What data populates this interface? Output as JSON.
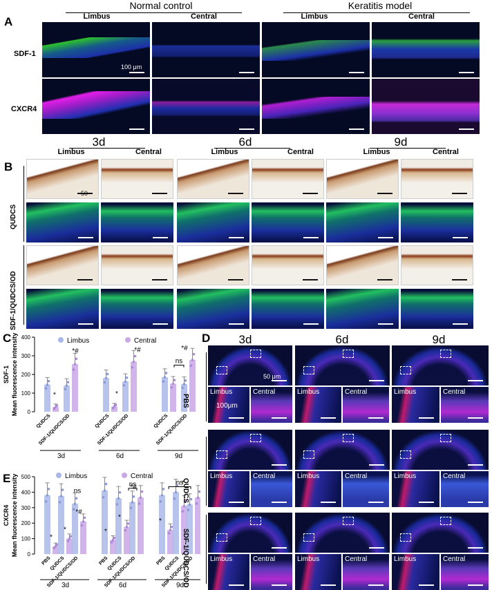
{
  "panelA": {
    "letter": "A",
    "groups": [
      "Normal control",
      "Keratitis model"
    ],
    "cols": [
      "Limbus",
      "Central",
      "Limbus",
      "Central"
    ],
    "rows": [
      "SDF-1",
      "CXCR4"
    ],
    "scale": "100 μm",
    "colors": {
      "sdf": "#32c832",
      "cxcr": "#d21edc",
      "dapi": "#1e32c8"
    }
  },
  "panelB": {
    "letter": "B",
    "days": [
      "3d",
      "6d",
      "9d"
    ],
    "cols": [
      "Limbus",
      "Central"
    ],
    "groups": [
      "QUDCS",
      "SDF-1/QUDCS/OD"
    ],
    "scale": "50 μm"
  },
  "panelC": {
    "letter": "C",
    "chart_data": {
      "type": "bar",
      "ylabel_line1": "SDF-1",
      "ylabel_line2": "Mean fluorescence intensity",
      "ylim": [
        0,
        400
      ],
      "yticks": [
        0,
        100,
        200,
        300,
        400
      ],
      "legend": [
        "Limbus",
        "Central"
      ],
      "colors": {
        "limbus": "#aab8e8",
        "central": "#c9a8e6"
      },
      "groups": [
        {
          "day": "3d",
          "categories": [
            "QUDCS",
            "SDF-1/QUDCS/OD"
          ],
          "limbus": [
            145,
            140
          ],
          "central": [
            25,
            255
          ]
        },
        {
          "day": "6d",
          "categories": [
            "QUDCS",
            "SDF-1/QUDCS/OD"
          ],
          "limbus": [
            180,
            162
          ],
          "central": [
            28,
            268
          ]
        },
        {
          "day": "9d",
          "categories": [
            "QUDCS",
            "SDF-1/QUDCS/OD"
          ],
          "limbus": [
            185,
            148
          ],
          "central": [
            150,
            278
          ]
        }
      ],
      "annotations": [
        "*",
        "*#",
        "ns"
      ]
    }
  },
  "panelD": {
    "letter": "D",
    "days": [
      "3d",
      "6d",
      "9d"
    ],
    "groups": [
      "PBS",
      "QUDCS",
      "SDF-1/QUDCS/OD"
    ],
    "inset_labels": [
      "Limbus",
      "Central"
    ],
    "scale1": "50 μm",
    "scale2": "100μm"
  },
  "panelE": {
    "letter": "E",
    "chart_data": {
      "type": "bar",
      "ylabel_line1": "CXCR4",
      "ylabel_line2": "Mean fluorescence intensity",
      "ylim": [
        0,
        500
      ],
      "yticks": [
        0,
        100,
        200,
        300,
        400,
        500
      ],
      "legend": [
        "Limbus",
        "Central"
      ],
      "colors": {
        "limbus": "#aab8e8",
        "central": "#c9a8e6"
      },
      "groups": [
        {
          "day": "3d",
          "categories": [
            "PBS",
            "QUDCS",
            "SDF-1/QUDCS/OD"
          ],
          "limbus": [
            380,
            375,
            325
          ],
          "central": [
            50,
            100,
            210
          ]
        },
        {
          "day": "6d",
          "categories": [
            "PBS",
            "QUDCS",
            "SDF-1/QUDCS/OD"
          ],
          "limbus": [
            410,
            360,
            335
          ],
          "central": [
            90,
            175,
            365
          ]
        },
        {
          "day": "9d",
          "categories": [
            "PBS",
            "QUDCS",
            "SDF-1/QUDCS/OD"
          ],
          "limbus": [
            380,
            400,
            320
          ],
          "central": [
            155,
            310,
            365
          ]
        }
      ],
      "annotations": [
        "*",
        "*#",
        "ns"
      ]
    }
  }
}
